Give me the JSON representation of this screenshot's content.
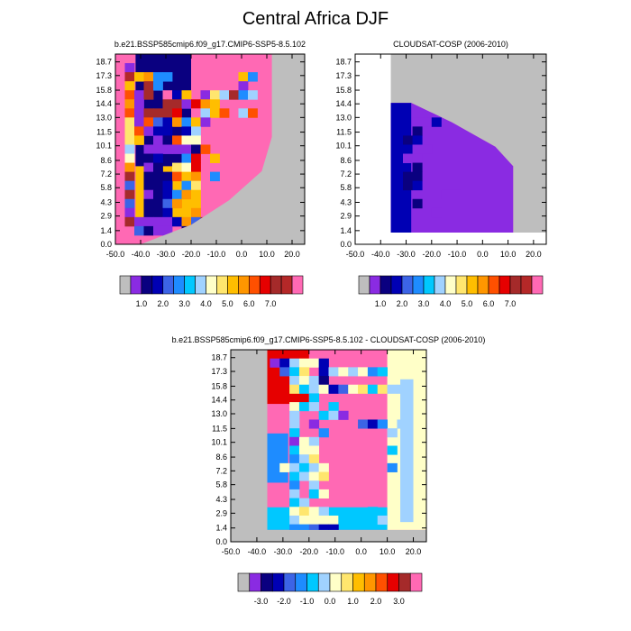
{
  "figure": {
    "title": "Central Africa DJF"
  },
  "colors": {
    "missing": "#bebebe",
    "raw_palette": [
      "#bebebe",
      "#8a2be2",
      "#0a0080",
      "#0000b4",
      "#3c64e6",
      "#1e8cff",
      "#00c8ff",
      "#a0d2ff",
      "#ffffc8",
      "#ffe66e",
      "#ffbe00",
      "#ff9600",
      "#ff5000",
      "#e60000",
      "#a52a2a",
      "#b42828",
      "#ff69b4"
    ],
    "diff_palette": [
      "#bebebe",
      "#8a2be2",
      "#0a0080",
      "#0000b4",
      "#3c64e6",
      "#1e8cff",
      "#00c8ff",
      "#a0d2ff",
      "#ffffc8",
      "#ffe66e",
      "#ffbe00",
      "#ff9600",
      "#ff5000",
      "#e60000",
      "#a52a2a",
      "#ff69b4"
    ]
  },
  "chart_data": [
    {
      "type": "heatmap",
      "title": "b.e21.BSSP585cmip6.f09_g17.CMIP6-SSP5-8.5.102",
      "xlabel": "",
      "ylabel": "",
      "x_ticks": [
        "-50.0",
        "-40.0",
        "-30.0",
        "-20.0",
        "-10.0",
        "0.0",
        "10.0",
        "20.0"
      ],
      "y_ticks": [
        "0.0",
        "1.4",
        "2.9",
        "4.3",
        "5.8",
        "7.2",
        "8.6",
        "10.1",
        "11.5",
        "13.0",
        "14.4",
        "15.8",
        "17.3",
        "18.7"
      ],
      "xlim": [
        -50,
        25
      ],
      "ylim": [
        0,
        19.5
      ],
      "colorbar_labels": [
        "1.0",
        "2.0",
        "3.0",
        "4.0",
        "5.0",
        "6.0",
        "7.0"
      ],
      "grid": [
        "....................",
        ".A..................",
        ".OJKEE.......JE.....",
        ".J.NE........0......",
        ".L0N.PCJ.4IGNEG.....",
        ".K0..NNAMKJ.........",
        ".L0NNNM.PGJL.GL.....",
        ".I0LDCKEJA..........",
        ".ILACC.CG.........K.",
        ".IJ.ABLHH..........H",
        ".G.AAAAABL.........G",
        ".H.BC..EM.J.........",
        ".K.AB.IHM...........",
        ".N.BBBLJK.E.......A.",
        ".D.BBC.EI.........C.",
        ".N.ABCEKJ.........E.",
        ".D.BBDK.J..........K",
        ".A.BBC.JK...........",
        ".NAAAACKDN......EN..",
        "..DBAA.BKHHF.JLO.NE.",
        "........A........N.F"
      ]
    },
    {
      "type": "heatmap",
      "title": "CLOUDSAT-COSP (2006-2010)",
      "xlabel": "",
      "ylabel": "",
      "x_ticks": [
        "-50.0",
        "-40.0",
        "-30.0",
        "-20.0",
        "-10.0",
        "0.0",
        "10.0",
        "20.0"
      ],
      "y_ticks": [
        "0.0",
        "1.4",
        "2.9",
        "4.3",
        "5.8",
        "7.2",
        "8.6",
        "10.1",
        "11.5",
        "13.0",
        "14.4",
        "15.8",
        "17.3",
        "18.7"
      ],
      "xlim": [
        -50,
        25
      ],
      "ylim": [
        0,
        19.5
      ],
      "colorbar_labels": [
        "1.0",
        "2.0",
        "3.0",
        "4.0",
        "5.0",
        "6.0",
        "7.0"
      ],
      "grid": [
        "....................",
        "..............BEC...",
        "........A....CE.....",
        ".........BC.........",
        "..........CBA.B.....",
        "..........CAA.BBCCA.",
        "........A...........",
        "......AAC...........",
        "......B.............",
        ".....BC.............",
        ".....CAA............",
        ".....AA..........AA.",
        "......B.............",
        ".....BB.............",
        ".....BC..........AA.",
        ".........AA.........",
        "......B.............",
        "........A...........",
        "....................",
        "....................",
        "...................."
      ]
    },
    {
      "type": "heatmap",
      "title": "b.e21.BSSP585cmip6.f09_g17.CMIP6-SSP5-8.5.102 - CLOUDSAT-COSP (2006-2010)",
      "xlabel": "",
      "ylabel": "",
      "x_ticks": [
        "-50.0",
        "-40.0",
        "-30.0",
        "-20.0",
        "-10.0",
        "0.0",
        "10.0",
        "20.0"
      ],
      "y_ticks": [
        "0.0",
        "1.4",
        "2.9",
        "4.3",
        "5.8",
        "7.2",
        "8.6",
        "10.1",
        "11.5",
        "13.0",
        "14.4",
        "15.8",
        "17.3",
        "18.7"
      ],
      "xlim": [
        -50,
        25
      ],
      "ylim": [
        0,
        19.5
      ],
      "colorbar_labels": [
        "-3.0",
        "-2.0",
        "-1.0",
        "0.0",
        "1.0",
        "2.0",
        "3.0"
      ],
      "grid": [
        "....................",
        "....ACGHHC..........",
        ".....DFI.CGHGHEF....",
        "......GHGB..........",
        "......IFGHCDHIFIGG..",
        "........F...........",
        "......HFG.F.........",
        "......G..FGA.......H",
        "......G.A....DCE.G..",
        "......F..E......G...",
        "......AHG...........",
        "......FHH.......F...",
        "......EGI...........",
        ".....HGFGH......E...",
        "......FGHI..........",
        "......E.G...........",
        "......G.FH..........",
        "......FG............",
        "......HIHG....F.....",
        "......GHHHHF..FG....",
        "......EEDCC.........",
        "...................."
      ]
    }
  ]
}
